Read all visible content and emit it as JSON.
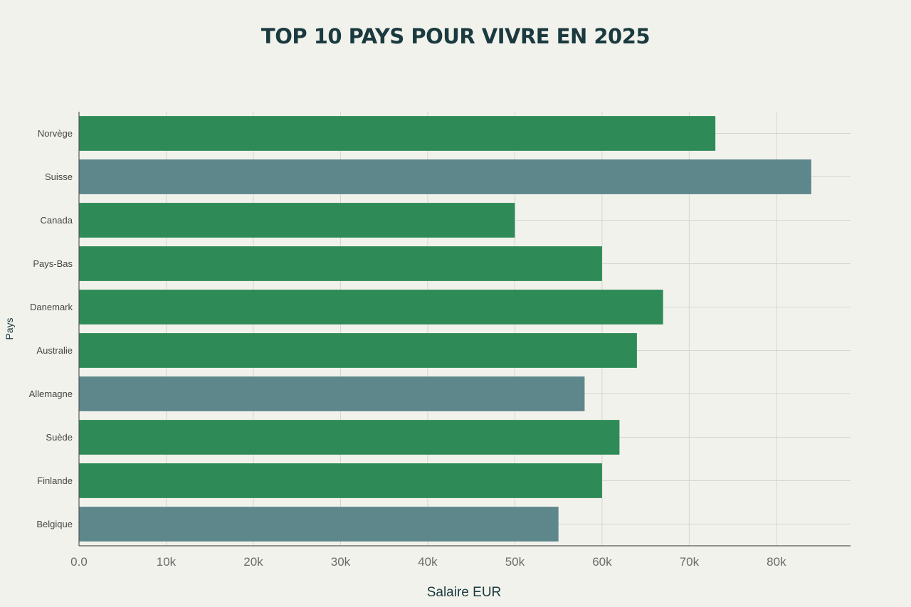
{
  "chart_data": {
    "type": "bar",
    "orientation": "horizontal",
    "title": "TOP 10 PAYS POUR VIVRE EN 2025",
    "xlabel": "Salaire EUR",
    "ylabel": "Pays",
    "xlim": [
      0,
      88500
    ],
    "xticks": [
      0,
      10000,
      20000,
      30000,
      40000,
      50000,
      60000,
      70000,
      80000
    ],
    "xtick_labels": [
      "0.0",
      "10k",
      "20k",
      "30k",
      "40k",
      "50k",
      "60k",
      "70k",
      "80k"
    ],
    "grid": true,
    "categories": [
      "Norvège",
      "Suisse",
      "Canada",
      "Pays-Bas",
      "Danemark",
      "Australie",
      "Allemagne",
      "Suède",
      "Finlande",
      "Belgique"
    ],
    "values": [
      73000,
      84000,
      50000,
      60000,
      67000,
      64000,
      58000,
      62000,
      60000,
      55000
    ],
    "bar_colors": [
      "#2e8b57",
      "#5e878c",
      "#2e8b57",
      "#2e8b57",
      "#2e8b57",
      "#2e8b57",
      "#5e878c",
      "#2e8b57",
      "#2e8b57",
      "#5e878c"
    ]
  }
}
